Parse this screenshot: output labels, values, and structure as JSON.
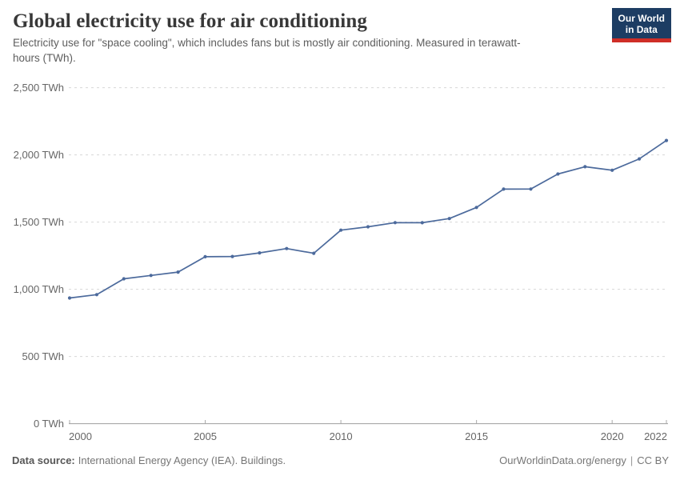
{
  "header": {
    "title": "Global electricity use for air conditioning",
    "subtitle": "Electricity use for \"space cooling\", which includes fans but is mostly air conditioning. Measured in terawatt-hours (TWh).",
    "logo": {
      "line1": "Our World",
      "line2": "in Data",
      "bg_color": "#1d3d63",
      "accent_color": "#cf2e27"
    }
  },
  "chart_data": {
    "type": "line",
    "title": "Global electricity use for air conditioning",
    "xlabel": "",
    "ylabel": "TWh",
    "x": [
      2000,
      2001,
      2002,
      2003,
      2004,
      2005,
      2006,
      2007,
      2008,
      2009,
      2010,
      2011,
      2012,
      2013,
      2014,
      2015,
      2016,
      2017,
      2018,
      2019,
      2020,
      2021,
      2022
    ],
    "values": [
      935,
      960,
      1078,
      1103,
      1128,
      1242,
      1244,
      1271,
      1303,
      1268,
      1440,
      1465,
      1496,
      1495,
      1526,
      1609,
      1745,
      1746,
      1858,
      1912,
      1886,
      1970,
      2107
    ],
    "x_range": [
      2000,
      2022
    ],
    "ylim": [
      0,
      2500
    ],
    "y_ticks": [
      {
        "value": 0,
        "label": "0 TWh"
      },
      {
        "value": 500,
        "label": "500 TWh"
      },
      {
        "value": 1000,
        "label": "1,000 TWh"
      },
      {
        "value": 1500,
        "label": "1,500 TWh"
      },
      {
        "value": 2000,
        "label": "2,000 TWh"
      },
      {
        "value": 2500,
        "label": "2,500 TWh"
      }
    ],
    "x_ticks": [
      {
        "value": 2000,
        "label": "2000"
      },
      {
        "value": 2005,
        "label": "2005"
      },
      {
        "value": 2010,
        "label": "2010"
      },
      {
        "value": 2015,
        "label": "2015"
      },
      {
        "value": 2020,
        "label": "2020"
      },
      {
        "value": 2022,
        "label": "2022"
      }
    ],
    "grid": "horizontal-dashed",
    "legend": "none",
    "line_color": "#4c6a9c",
    "marker": "circle"
  },
  "footer": {
    "source_label": "Data source:",
    "source_text": "International Energy Agency (IEA). Buildings.",
    "credit_url": "OurWorldinData.org/energy",
    "separator": "|",
    "license": "CC BY"
  }
}
